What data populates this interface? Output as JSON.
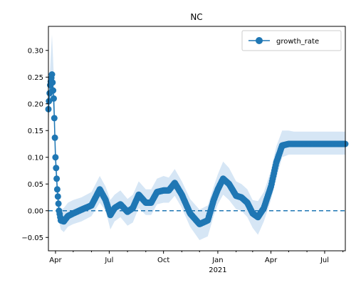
{
  "chart_data": {
    "type": "line",
    "title": "NC",
    "xlabel": "",
    "ylabel": "",
    "xlim": [
      "2020-03-20",
      "2021-08-05"
    ],
    "ylim": [
      -0.075,
      0.345
    ],
    "x_ticks": [
      {
        "date": "2020-04-01",
        "label": "Apr"
      },
      {
        "date": "2020-07-01",
        "label": "Jul"
      },
      {
        "date": "2020-10-01",
        "label": "Oct"
      },
      {
        "date": "2021-01-01",
        "label": "Jan"
      },
      {
        "date": "2021-04-01",
        "label": "Apr"
      },
      {
        "date": "2021-07-01",
        "label": "Jul"
      }
    ],
    "x_year_label": "2021",
    "y_ticks": [
      {
        "value": -0.05,
        "label": "−0.05"
      },
      {
        "value": 0.0,
        "label": "0.00"
      },
      {
        "value": 0.05,
        "label": "0.05"
      },
      {
        "value": 0.1,
        "label": "0.10"
      },
      {
        "value": 0.15,
        "label": "0.15"
      },
      {
        "value": 0.2,
        "label": "0.20"
      },
      {
        "value": 0.25,
        "label": "0.25"
      },
      {
        "value": 0.3,
        "label": "0.30"
      }
    ],
    "reference_line": {
      "y": 0.0,
      "style": "dashed"
    },
    "grid": false,
    "legend_position": "top-right",
    "series": [
      {
        "name": "growth_rate",
        "color": "#1f77b4",
        "band_color": "#d6e6f5",
        "x": [
          "2020-03-20",
          "2020-03-23",
          "2020-03-26",
          "2020-03-29",
          "2020-04-01",
          "2020-04-04",
          "2020-04-07",
          "2020-04-10",
          "2020-04-15",
          "2020-04-22",
          "2020-05-01",
          "2020-05-15",
          "2020-06-01",
          "2020-06-15",
          "2020-06-25",
          "2020-07-03",
          "2020-07-10",
          "2020-07-20",
          "2020-08-01",
          "2020-08-10",
          "2020-08-20",
          "2020-09-01",
          "2020-09-10",
          "2020-09-20",
          "2020-10-01",
          "2020-10-10",
          "2020-10-20",
          "2020-11-01",
          "2020-11-15",
          "2020-12-01",
          "2020-12-15",
          "2020-12-25",
          "2021-01-01",
          "2021-01-10",
          "2021-01-20",
          "2021-02-01",
          "2021-02-10",
          "2021-02-20",
          "2021-03-01",
          "2021-03-10",
          "2021-03-20",
          "2021-04-01",
          "2021-04-10",
          "2021-04-20",
          "2021-05-01",
          "2021-05-10",
          "2021-05-20",
          "2021-06-01",
          "2021-06-10",
          "2021-06-20",
          "2021-06-28",
          "2021-07-05",
          "2021-07-10",
          "2021-07-20",
          "2021-08-05"
        ],
        "y": [
          0.19,
          0.235,
          0.255,
          0.21,
          0.1,
          0.04,
          0.0,
          -0.018,
          -0.02,
          -0.01,
          -0.005,
          0.002,
          0.01,
          0.04,
          0.02,
          -0.008,
          0.005,
          0.012,
          -0.002,
          0.005,
          0.03,
          0.015,
          0.015,
          0.035,
          0.038,
          0.038,
          0.052,
          0.03,
          -0.005,
          -0.025,
          -0.018,
          0.02,
          0.04,
          0.06,
          0.05,
          0.028,
          0.025,
          0.015,
          -0.005,
          -0.012,
          0.005,
          0.045,
          0.09,
          0.122,
          0.125,
          0.125,
          0.125,
          0.125,
          0.125,
          0.125,
          0.125,
          0.125,
          0.125,
          0.125,
          0.125
        ],
        "lower": [
          0.165,
          0.205,
          0.215,
          0.175,
          0.075,
          0.015,
          -0.02,
          -0.035,
          -0.04,
          -0.03,
          -0.025,
          -0.02,
          -0.01,
          0.015,
          0.0,
          -0.035,
          -0.02,
          -0.012,
          -0.028,
          -0.022,
          0.005,
          -0.008,
          -0.008,
          0.012,
          0.015,
          0.015,
          0.028,
          0.005,
          -0.03,
          -0.055,
          -0.048,
          -0.01,
          0.012,
          0.03,
          0.02,
          0.003,
          0.0,
          -0.012,
          -0.032,
          -0.045,
          -0.02,
          0.02,
          0.06,
          0.1,
          0.105,
          0.105,
          0.105,
          0.105,
          0.105,
          0.105,
          0.105,
          0.105,
          0.105,
          0.105,
          0.105
        ],
        "upper": [
          0.215,
          0.27,
          0.33,
          0.255,
          0.13,
          0.07,
          0.025,
          0.002,
          0.005,
          0.015,
          0.02,
          0.025,
          0.035,
          0.065,
          0.045,
          0.02,
          0.03,
          0.038,
          0.022,
          0.03,
          0.055,
          0.04,
          0.04,
          0.06,
          0.065,
          0.062,
          0.078,
          0.055,
          0.022,
          0.002,
          0.01,
          0.045,
          0.068,
          0.092,
          0.08,
          0.055,
          0.05,
          0.04,
          0.02,
          0.018,
          0.035,
          0.075,
          0.12,
          0.15,
          0.15,
          0.148,
          0.148,
          0.148,
          0.148,
          0.148,
          0.148,
          0.148,
          0.148,
          0.148,
          0.148
        ]
      }
    ]
  }
}
